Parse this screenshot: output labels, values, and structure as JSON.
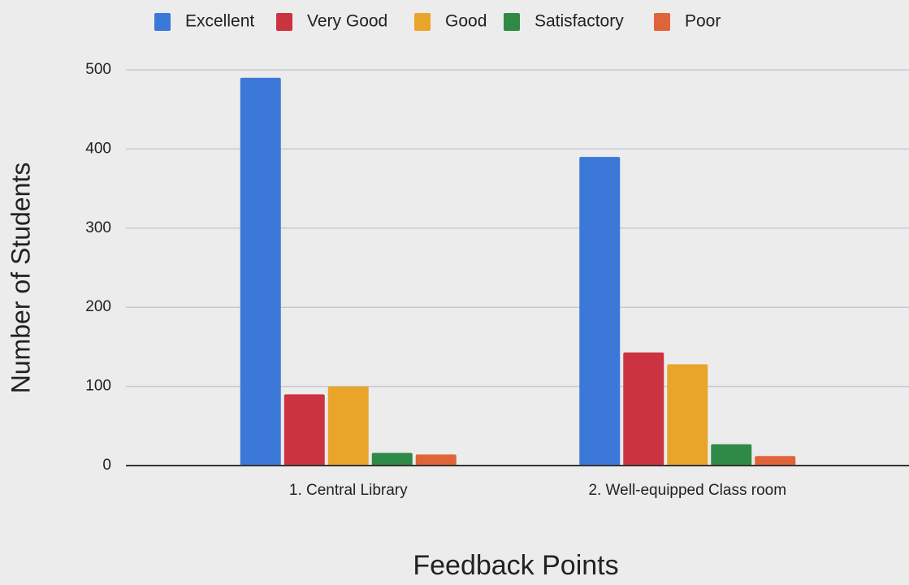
{
  "chart_data": {
    "type": "bar",
    "xlabel": "Feedback Points",
    "ylabel": "Number of Students",
    "categories": [
      "1. Central Library",
      "2. Well-equipped Class room"
    ],
    "series": [
      {
        "name": "Excellent",
        "color": "#3c78d8",
        "values": [
          490,
          390
        ]
      },
      {
        "name": "Very Good",
        "color": "#cc3340",
        "values": [
          90,
          143
        ]
      },
      {
        "name": "Good",
        "color": "#e8a52a",
        "values": [
          100,
          128
        ]
      },
      {
        "name": "Satisfactory",
        "color": "#2f8a47",
        "values": [
          16,
          27
        ]
      },
      {
        "name": "Poor",
        "color": "#e0643a",
        "values": [
          14,
          12
        ]
      }
    ],
    "ylim": [
      0,
      500
    ],
    "yticks": [
      0,
      100,
      200,
      300,
      400,
      500
    ],
    "grid": true,
    "legend": "top"
  }
}
